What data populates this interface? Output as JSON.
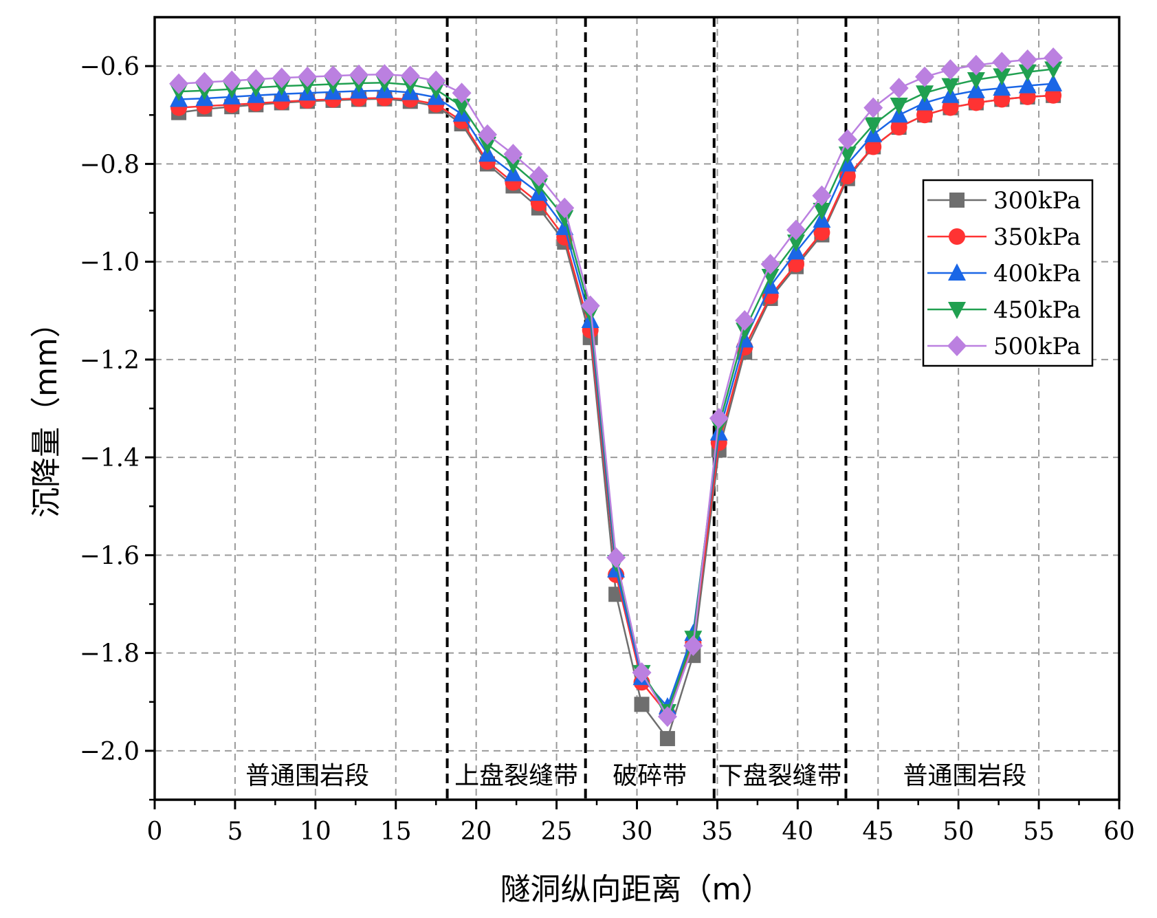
{
  "chart_data": {
    "type": "line",
    "title": "",
    "xlabel": "隧洞纵向距离（m）",
    "ylabel": "沉降量（mm）",
    "xlim": [
      0,
      60
    ],
    "ylim": [
      -2.1,
      -0.5
    ],
    "xticks": [
      0,
      5,
      10,
      15,
      20,
      25,
      30,
      35,
      40,
      45,
      50,
      55,
      60
    ],
    "yticks": [
      -2.0,
      -1.8,
      -1.6,
      -1.4,
      -1.2,
      -1.0,
      -0.8,
      -0.6
    ],
    "xtick_labels": [
      "0",
      "5",
      "10",
      "15",
      "20",
      "25",
      "30",
      "35",
      "40",
      "45",
      "50",
      "55",
      "60"
    ],
    "ytick_labels": [
      "−2.0",
      "−1.8",
      "−1.6",
      "−1.4",
      "−1.2",
      "−1.0",
      "−0.8",
      "−0.6"
    ],
    "grid": true,
    "legend_position": "right-middle",
    "x": [
      1.5,
      3.1,
      4.8,
      6.3,
      7.9,
      9.5,
      11.1,
      12.7,
      14.3,
      15.9,
      17.5,
      19.1,
      20.7,
      22.3,
      23.9,
      25.5,
      27.1,
      28.7,
      30.3,
      31.9,
      33.5,
      35.1,
      36.7,
      38.3,
      39.9,
      41.5,
      43.1,
      44.7,
      46.3,
      47.9,
      49.5,
      51.1,
      52.7,
      54.3,
      55.9
    ],
    "series": [
      {
        "name": "300kPa",
        "marker": "square",
        "color": "#6e6e6e",
        "values": [
          -0.695,
          -0.688,
          -0.683,
          -0.679,
          -0.675,
          -0.672,
          -0.67,
          -0.668,
          -0.667,
          -0.672,
          -0.682,
          -0.718,
          -0.8,
          -0.845,
          -0.89,
          -0.96,
          -1.155,
          -1.68,
          -1.905,
          -1.975,
          -1.805,
          -1.385,
          -1.185,
          -1.075,
          -1.01,
          -0.945,
          -0.83,
          -0.765,
          -0.725,
          -0.7,
          -0.685,
          -0.675,
          -0.668,
          -0.663,
          -0.66
        ]
      },
      {
        "name": "350kPa",
        "marker": "circle",
        "color": "#ff3333",
        "values": [
          -0.685,
          -0.682,
          -0.679,
          -0.676,
          -0.673,
          -0.67,
          -0.668,
          -0.666,
          -0.665,
          -0.668,
          -0.678,
          -0.712,
          -0.795,
          -0.838,
          -0.88,
          -0.95,
          -1.14,
          -1.64,
          -1.86,
          -1.925,
          -1.78,
          -1.37,
          -1.175,
          -1.07,
          -1.005,
          -0.94,
          -0.825,
          -0.765,
          -0.725,
          -0.7,
          -0.685,
          -0.675,
          -0.668,
          -0.663,
          -0.66
        ]
      },
      {
        "name": "400kPa",
        "marker": "triangle-up",
        "color": "#1a66e6",
        "values": [
          -0.668,
          -0.666,
          -0.663,
          -0.66,
          -0.657,
          -0.655,
          -0.653,
          -0.651,
          -0.65,
          -0.654,
          -0.664,
          -0.698,
          -0.78,
          -0.82,
          -0.86,
          -0.93,
          -1.12,
          -1.63,
          -1.85,
          -1.91,
          -1.76,
          -1.35,
          -1.16,
          -1.05,
          -0.98,
          -0.915,
          -0.8,
          -0.74,
          -0.7,
          -0.675,
          -0.66,
          -0.65,
          -0.645,
          -0.64,
          -0.636
        ]
      },
      {
        "name": "450kPa",
        "marker": "triangle-down",
        "color": "#20a050",
        "values": [
          -0.652,
          -0.65,
          -0.647,
          -0.644,
          -0.641,
          -0.639,
          -0.637,
          -0.635,
          -0.634,
          -0.638,
          -0.648,
          -0.682,
          -0.76,
          -0.8,
          -0.845,
          -0.91,
          -1.105,
          -1.615,
          -1.84,
          -1.92,
          -1.77,
          -1.335,
          -1.14,
          -1.03,
          -0.96,
          -0.895,
          -0.78,
          -0.72,
          -0.68,
          -0.655,
          -0.64,
          -0.628,
          -0.62,
          -0.612,
          -0.606
        ]
      },
      {
        "name": "500kPa",
        "marker": "diamond",
        "color": "#bb80e0",
        "values": [
          -0.636,
          -0.633,
          -0.63,
          -0.627,
          -0.624,
          -0.622,
          -0.62,
          -0.618,
          -0.617,
          -0.62,
          -0.63,
          -0.655,
          -0.74,
          -0.78,
          -0.825,
          -0.89,
          -1.09,
          -1.605,
          -1.84,
          -1.93,
          -1.785,
          -1.32,
          -1.12,
          -1.005,
          -0.935,
          -0.865,
          -0.75,
          -0.685,
          -0.645,
          -0.622,
          -0.607,
          -0.598,
          -0.592,
          -0.587,
          -0.583
        ]
      }
    ],
    "boundaries": [
      18.2,
      26.8,
      34.8,
      43.0
    ],
    "regions": [
      {
        "label": "普通围岩段",
        "x": 9.5
      },
      {
        "label": "上盘裂缝带",
        "x": 22.5
      },
      {
        "label": "破碎带",
        "x": 30.8
      },
      {
        "label": "下盘裂缝带",
        "x": 38.9
      },
      {
        "label": "普通围岩段",
        "x": 50.4
      }
    ]
  }
}
